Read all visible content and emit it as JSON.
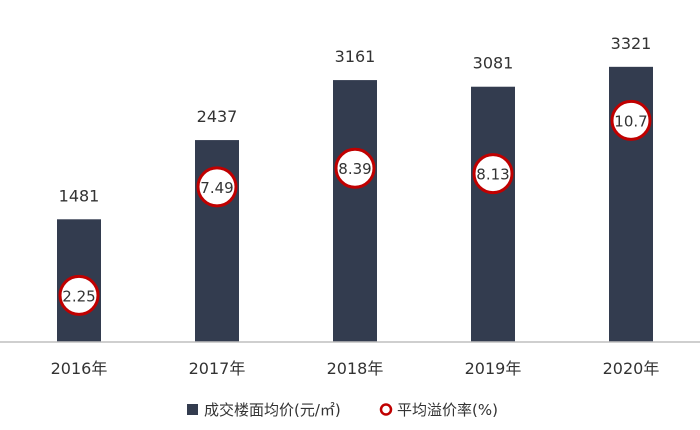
{
  "chart_data": {
    "type": "bar",
    "categories": [
      "2016年",
      "2017年",
      "2018年",
      "2019年",
      "2020年"
    ],
    "series": [
      {
        "name": "成交楼面均价(元/㎡)",
        "type": "bar",
        "values": [
          1481,
          2437,
          3161,
          3081,
          3321
        ],
        "value_labels": [
          "1481",
          "2437",
          "3161",
          "3081",
          "3321"
        ],
        "color": "#333c4f"
      },
      {
        "name": "平均溢价率(%)",
        "type": "scatter",
        "values": [
          2.25,
          7.49,
          8.39,
          8.13,
          10.7
        ],
        "value_labels": [
          "2.25",
          "7.49",
          "8.39",
          "8.13",
          "10.7"
        ],
        "color": "#c00000"
      }
    ],
    "bar_ylim": [
      0,
      3500
    ],
    "rate_ylim": [
      0,
      14
    ],
    "grid": false,
    "legend_position": "bottom"
  }
}
